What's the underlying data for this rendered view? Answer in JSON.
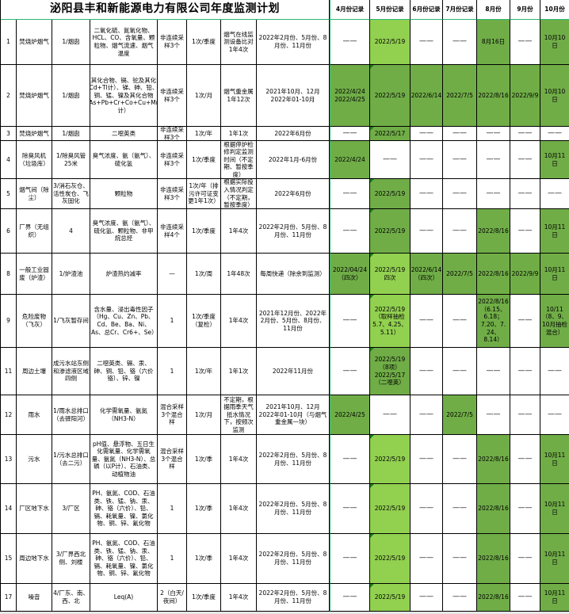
{
  "title": "泌阳县丰和新能源电力有限公司年度监测计划",
  "month_headers": [
    "4月份记录",
    "5月份记录",
    "6月份记录",
    "7月份记录",
    "8月份",
    "9月份",
    "10月份"
  ],
  "colors": {
    "light_green": "#92d050",
    "dark_green": "#70ad47",
    "white": "#ffffff"
  },
  "rows": [
    {
      "cells": [
        "1",
        "焚烧炉烟气",
        "1/烟囱",
        "二氧化硫、氮氧化物、HCL、CO、含氧量、颗粒物、烟气流速、烟气温度",
        "非连续采样3个",
        "1次/季度",
        "烟气在线监测设备比对1年4次",
        "2022年2月份、5月份、8月份、11月份"
      ],
      "months": [
        {
          "text": "——",
          "fill": "white"
        },
        {
          "text": "2022/5/19",
          "fill": "light"
        },
        {
          "text": "——",
          "fill": "white"
        },
        {
          "text": "——",
          "fill": "white"
        },
        {
          "text": "8月16日",
          "fill": "dark"
        },
        {
          "text": "——",
          "fill": "white"
        },
        {
          "text": "10月10日",
          "fill": "dark"
        }
      ]
    },
    {
      "cells": [
        "2",
        "焚烧炉烟气",
        "1/烟囱",
        "汞及其化合物、镉、铊及其化合物（以Cd+Tl计）、锑、砷、铅、铬、钴、铜、锰、镍及其化合物（以Sb+As+Pb+Cr+Co+Cu+Mn+Ni计）",
        "非连续采样3个",
        "1次/月",
        "烟气重金属1年12次",
        "2021年10月、12月\n2022年01-10月"
      ],
      "months": [
        {
          "text": "2022/4/24\n2022/4/25",
          "fill": "dark"
        },
        {
          "text": "2022/5/19",
          "fill": "dark"
        },
        {
          "text": "2022/6/14",
          "fill": "dark"
        },
        {
          "text": "2022/7/5",
          "fill": "dark"
        },
        {
          "text": "2022/8/16",
          "fill": "dark"
        },
        {
          "text": "2022/9/9",
          "fill": "dark"
        },
        {
          "text": "10月10日",
          "fill": "dark"
        }
      ]
    },
    {
      "cells": [
        "3",
        "焚烧炉烟气",
        "1/烟囱",
        "二噁英类",
        "非连续采样3个",
        "1次/年",
        "1年1次",
        "2022年6月份"
      ],
      "months": [
        {
          "text": "——",
          "fill": "white"
        },
        {
          "text": "2022/5/17",
          "fill": "dark"
        },
        {
          "text": "——",
          "fill": "white"
        },
        {
          "text": "——",
          "fill": "white"
        },
        {
          "text": "——",
          "fill": "white"
        },
        {
          "text": "——",
          "fill": "white"
        },
        {
          "text": "——",
          "fill": "white"
        }
      ]
    },
    {
      "cells": [
        "4",
        "除臭风机（垃圾库）",
        "1/除臭风管25米",
        "臭气浓度、氨（氨气）、硫化氢",
        "非连续采样3个",
        "1次/季度",
        "根据停炉检修判定监测时间（不定期、暂按季度）",
        "2022年1月-6月份"
      ],
      "months": [
        {
          "text": "2022/4/24",
          "fill": "dark"
        },
        {
          "text": "——",
          "fill": "white"
        },
        {
          "text": "——",
          "fill": "white"
        },
        {
          "text": "——",
          "fill": "white"
        },
        {
          "text": "——",
          "fill": "white"
        },
        {
          "text": "——",
          "fill": "white"
        },
        {
          "text": "10月11日",
          "fill": "dark"
        }
      ]
    },
    {
      "cells": [
        "5",
        "烟气间（除尘）",
        "3/消石灰仓、活性炭仓、飞灰固化",
        "颗粒物",
        "非连续采样3个",
        "1次/年（排污许可证变更1年1次）",
        "根据实际投入情况判定（不定期，暂按季度）",
        "2022年6月份"
      ],
      "months": [
        {
          "text": "——",
          "fill": "white"
        },
        {
          "text": "2022/5/19",
          "fill": "dark"
        },
        {
          "text": "——",
          "fill": "white"
        },
        {
          "text": "——",
          "fill": "white"
        },
        {
          "text": "——",
          "fill": "white"
        },
        {
          "text": "——",
          "fill": "white"
        },
        {
          "text": "——",
          "fill": "white"
        }
      ]
    },
    {
      "cells": [
        "6",
        "厂界（无组织）",
        "4",
        "臭气浓度、氨（氨气）、硫化氢、颗粒物、非甲烷总烃",
        "非连续采样4个",
        "1次/季度",
        "1年4次",
        "2022年2月份、5月份、8月份、11月份"
      ],
      "months": [
        {
          "text": "——",
          "fill": "white"
        },
        {
          "text": "2022/5/19",
          "fill": "dark"
        },
        {
          "text": "——",
          "fill": "white"
        },
        {
          "text": "——",
          "fill": "white"
        },
        {
          "text": "2022/8/16",
          "fill": "dark"
        },
        {
          "text": "——",
          "fill": "white"
        },
        {
          "text": "10月11日",
          "fill": "dark"
        }
      ]
    },
    {
      "cells": [
        "8",
        "一般工业固废（炉渣）",
        "1/炉渣池",
        "炉渣热灼减率",
        "—",
        "1次/周",
        "1年48次",
        "每周快递（除余到监测）"
      ],
      "months": [
        {
          "text": "2022/04/24（四次）",
          "fill": "dark"
        },
        {
          "text": "2022/5/19\n四次",
          "fill": "light"
        },
        {
          "text": "2022/6/14\n（四次）",
          "fill": "dark"
        },
        {
          "text": "2022/7/5",
          "fill": "dark"
        },
        {
          "text": "2022/8/16",
          "fill": "dark"
        },
        {
          "text": "2022/9/9",
          "fill": "dark"
        },
        {
          "text": "10月11日",
          "fill": "dark"
        }
      ]
    },
    {
      "cells": [
        "9",
        "危险废物（飞灰）",
        "1/飞灰暂存间",
        "含水量、浸出毒性因子（Hg、Cu、Zn、Pb、Cd、Be、Ba、Ni、As、总Cr、Cr6+、Se）",
        "1",
        "1次/季度（复检）",
        "1年4次",
        "2021年12月份、2022年2月份、5月份、8月份、11月份"
      ],
      "months": [
        {
          "text": "——",
          "fill": "white"
        },
        {
          "text": "2022/5/19\n（取样抽检\n5.7、4.25、\n5.11）",
          "fill": "light"
        },
        {
          "text": "——",
          "fill": "white"
        },
        {
          "text": "——",
          "fill": "white"
        },
        {
          "text": "2022/8/16\n（6.15、\n6.18；\n7.20、7.\n24、\n8.14）",
          "fill": "dark"
        },
        {
          "text": "——",
          "fill": "white"
        },
        {
          "text": "10/11（8、9、10月抽检混合）",
          "fill": "dark"
        }
      ]
    },
    {
      "cells": [
        "11",
        "周边土壤",
        "成污水站东侧和渗滤液区域四侧",
        "二噁英类、镉、汞、砷、铜、铅、铬（六价铬）、锌、镍",
        "1",
        "1次/年",
        "1年1次",
        "2022年11月份"
      ],
      "months": [
        {
          "text": "——",
          "fill": "white"
        },
        {
          "text": "2022/5/19（8项）\n2022/5/17\n（二噁英）",
          "fill": "dark"
        },
        {
          "text": "——",
          "fill": "white"
        },
        {
          "text": "——",
          "fill": "white"
        },
        {
          "text": "——",
          "fill": "white"
        },
        {
          "text": "——",
          "fill": "white"
        },
        {
          "text": "——",
          "fill": "white"
        }
      ]
    },
    {
      "cells": [
        "12",
        "雨水",
        "1/雨水总排口（去驿阳河）",
        "化学需氧量、氨氮（NH3-N）",
        "混合采样3个混合样",
        "1次/月",
        "不定期，根据雨季天气抵水情况下，按频次监测",
        "2021年10月、12月\n2022年01-10月（与烟气重金属一块）"
      ],
      "months": [
        {
          "text": "2022/4/25",
          "fill": "dark"
        },
        {
          "text": "——",
          "fill": "white"
        },
        {
          "text": "——",
          "fill": "white"
        },
        {
          "text": "2022/7/5",
          "fill": "dark"
        },
        {
          "text": "——",
          "fill": "white"
        },
        {
          "text": "——",
          "fill": "white"
        },
        {
          "text": "——",
          "fill": "white"
        }
      ]
    },
    {
      "cells": [
        "13",
        "污水",
        "1/污水总排口（去二污）",
        "pH值、悬浮物、五日生化需氧量、化学需氧量、氨氮（NH3-N）、总磷（以P计）、石油类、动植物油",
        "混合采样3个混合样",
        "1次/季",
        "1年4次",
        "2022年2月份、5月份、8月份、11月份"
      ],
      "months": [
        {
          "text": "——",
          "fill": "white"
        },
        {
          "text": "2022/5/19",
          "fill": "light"
        },
        {
          "text": "——",
          "fill": "white"
        },
        {
          "text": "——",
          "fill": "white"
        },
        {
          "text": "2022/8/16",
          "fill": "dark"
        },
        {
          "text": "——",
          "fill": "white"
        },
        {
          "text": "10月11日",
          "fill": "dark"
        }
      ]
    },
    {
      "cells": [
        "14",
        "厂区地下水",
        "3/厂区",
        "PH、氨氮、COD、石油类、铁、锰、钠、汞、砷、铬（六价）、铅、镉、耗氧量、镍、氯化物、铜、锌、氟化物",
        "1",
        "1次/季",
        "1年4次",
        "2022年2月份、5月份、8月份、11月份"
      ],
      "months": [
        {
          "text": "——",
          "fill": "white"
        },
        {
          "text": "2022/5/19",
          "fill": "light"
        },
        {
          "text": "——",
          "fill": "white"
        },
        {
          "text": "——",
          "fill": "white"
        },
        {
          "text": "2022/8/16",
          "fill": "dark"
        },
        {
          "text": "——",
          "fill": "white"
        },
        {
          "text": "10月11日",
          "fill": "dark"
        }
      ]
    },
    {
      "cells": [
        "15",
        "周边地下水",
        "3/厂界西北侧、刘楼",
        "PH、氨氮、COD、石油类、铁、锰、钠、汞、砷、铬（六价）、铅、镉、耗氧量、镍、氯化物、铜、锌、氟化物",
        "1",
        "1次/季",
        "1年4次",
        "2022年2月份、5月份、8月份、11月份"
      ],
      "months": [
        {
          "text": "——",
          "fill": "white"
        },
        {
          "text": "2022/5/19",
          "fill": "light"
        },
        {
          "text": "——",
          "fill": "white"
        },
        {
          "text": "——",
          "fill": "white"
        },
        {
          "text": "2022/8/16",
          "fill": "dark"
        },
        {
          "text": "——",
          "fill": "white"
        },
        {
          "text": "10月11日",
          "fill": "dark"
        }
      ]
    },
    {
      "cells": [
        "17",
        "噪音",
        "4/厂东、南、西、北",
        "Leq(A)",
        "2（白天/夜间）",
        "1次/季度",
        "1年4次",
        "2022年2月份、5月份、8月份、11月份"
      ],
      "months": [
        {
          "text": "——",
          "fill": "white"
        },
        {
          "text": "2022/5/19",
          "fill": "light"
        },
        {
          "text": "——",
          "fill": "white"
        },
        {
          "text": "——",
          "fill": "white"
        },
        {
          "text": "2022/8/16",
          "fill": "dark"
        },
        {
          "text": "——",
          "fill": "white"
        },
        {
          "text": "10月11日",
          "fill": "dark"
        }
      ]
    }
  ]
}
